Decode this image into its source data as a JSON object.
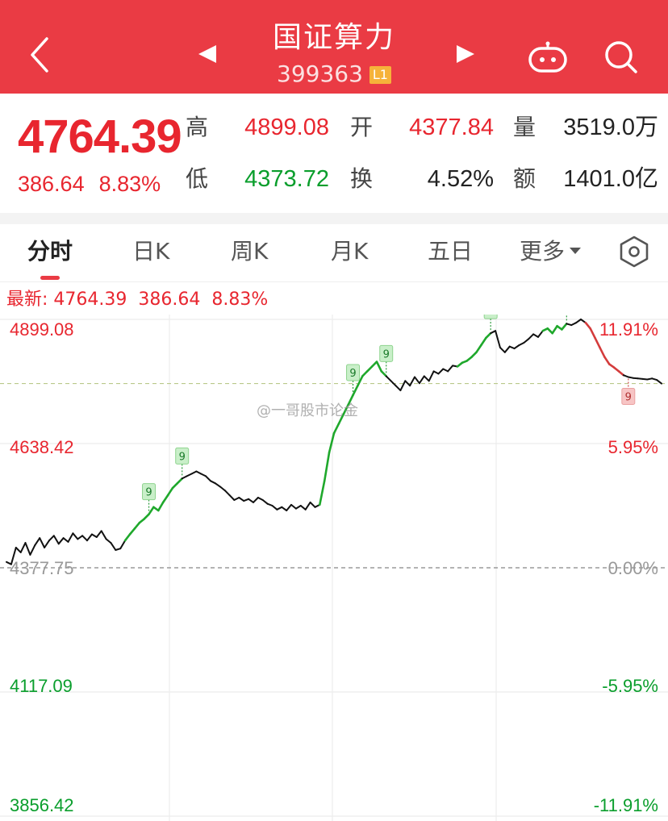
{
  "header": {
    "title": "国证算力",
    "code": "399363",
    "level_badge": "L1",
    "back_icon": "chevron-left-icon",
    "prev_icon": "triangle-left-icon",
    "next_icon": "triangle-right-icon",
    "robot_icon": "robot-icon",
    "search_icon": "search-icon"
  },
  "quote": {
    "price": "4764.39",
    "change": "386.64",
    "change_pct": "8.83%",
    "high_label": "高",
    "high": "4899.08",
    "open_label": "开",
    "open": "4377.84",
    "volume_label": "量",
    "volume": "3519.0万",
    "low_label": "低",
    "low": "4373.72",
    "turnover_label": "换",
    "turnover": "4.52%",
    "amount_label": "额",
    "amount": "1401.0亿"
  },
  "tabs": [
    {
      "label": "分时",
      "active": true
    },
    {
      "label": "日K",
      "active": false
    },
    {
      "label": "周K",
      "active": false
    },
    {
      "label": "月K",
      "active": false
    },
    {
      "label": "五日",
      "active": false
    },
    {
      "label": "更多",
      "active": false
    }
  ],
  "settings_icon": "hexagon-settings-icon",
  "latest": {
    "label": "最新: 4764.39",
    "change": "386.64",
    "change_pct": "8.83%"
  },
  "watermark": "@一哥股市论金",
  "colors": {
    "brand_red": "#ea3b44",
    "up_red": "#e8262f",
    "down_green": "#0a9e2c",
    "signal_green": "#1fa82c",
    "signal_red": "#d43c3c"
  },
  "chart_data": {
    "type": "line",
    "ylim": [
      3856.42,
      4899.08
    ],
    "y_ticks_left": [
      "4899.08",
      "4638.42",
      "4377.75",
      "4117.09",
      "3856.42"
    ],
    "y_ticks_right": [
      "11.91%",
      "5.95%",
      "0.00%",
      "-5.95%",
      "-11.91%"
    ],
    "baseline": 4377.75,
    "series": [
      {
        "values": [
          4390,
          4385,
          4420,
          4410,
          4430,
          4405,
          4425,
          4440,
          4420,
          4435,
          4445,
          4428,
          4440,
          4432,
          4450,
          4438,
          4445,
          4435,
          4448,
          4442,
          4455,
          4438,
          4430,
          4415,
          4418,
          4435,
          4448,
          4460,
          4472,
          4480,
          4490,
          4505,
          4498,
          4515,
          4530,
          4545,
          4555,
          4565,
          4570,
          4575,
          4580,
          4575,
          4570,
          4560,
          4555,
          4548,
          4540,
          4530,
          4520,
          4525,
          4518,
          4522,
          4515,
          4525,
          4520,
          4512,
          4508,
          4500,
          4505,
          4498,
          4510,
          4502,
          4508,
          4500,
          4515,
          4505,
          4510,
          4560,
          4620,
          4660,
          4680,
          4700,
          4720,
          4740,
          4760,
          4780,
          4790,
          4800,
          4810,
          4790,
          4780,
          4770,
          4760,
          4750,
          4770,
          4760,
          4778,
          4765,
          4780,
          4770,
          4790,
          4785,
          4795,
          4790,
          4802,
          4800,
          4808,
          4812,
          4820,
          4830,
          4845,
          4860,
          4870,
          4875,
          4840,
          4830,
          4842,
          4838,
          4845,
          4850,
          4858,
          4868,
          4862,
          4875,
          4880,
          4870,
          4885,
          4878,
          4890,
          4887,
          4892,
          4899,
          4892,
          4880,
          4860,
          4840,
          4820,
          4805,
          4798,
          4790,
          4782,
          4778,
          4776,
          4775,
          4774,
          4773,
          4775,
          4772,
          4764.39
        ],
        "signals": [
          {
            "index": 30,
            "label": "9",
            "kind": "buy"
          },
          {
            "index": 37,
            "label": "9",
            "kind": "buy"
          },
          {
            "index": 73,
            "label": "9",
            "kind": "buy"
          },
          {
            "index": 80,
            "label": "9",
            "kind": "buy"
          },
          {
            "index": 102,
            "label": "9",
            "kind": "buy"
          },
          {
            "index": 118,
            "label": "9",
            "kind": "buy"
          },
          {
            "index": 131,
            "label": "9",
            "kind": "sell"
          }
        ]
      }
    ],
    "grid": true
  }
}
